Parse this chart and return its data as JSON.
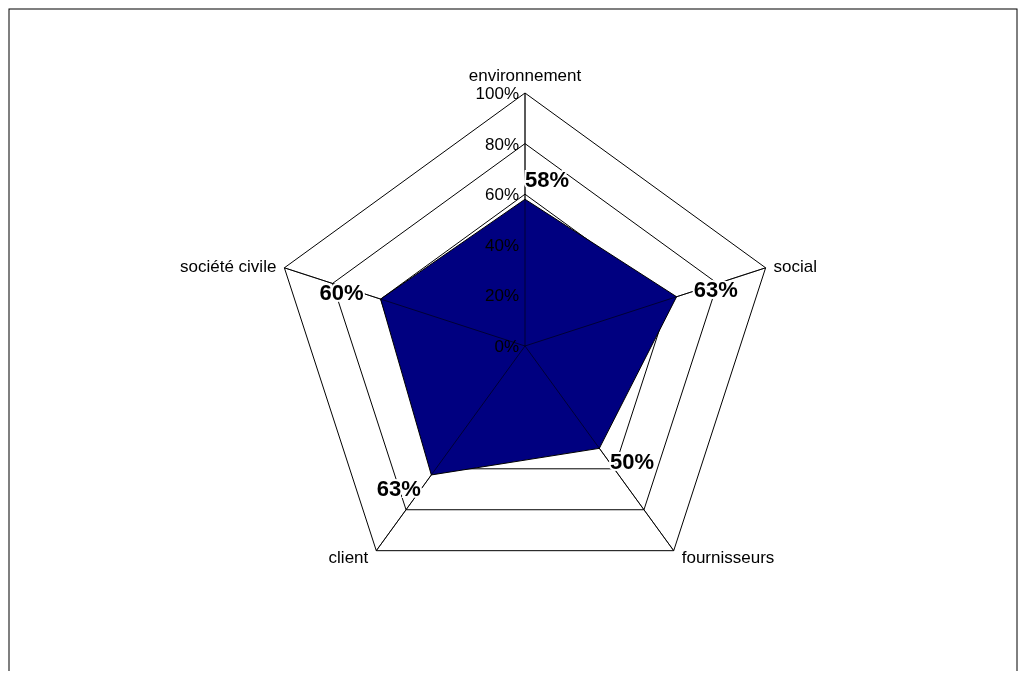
{
  "chart_data": {
    "type": "radar",
    "categories": [
      "environnement",
      "social",
      "fournisseurs",
      "client",
      "société civile"
    ],
    "series": [
      {
        "color": "#000080",
        "values": [
          58,
          63,
          50,
          63,
          60
        ]
      }
    ],
    "ylim": [
      0,
      100
    ],
    "yticks": [
      {
        "value": 0,
        "label": "0%"
      },
      {
        "value": 20,
        "label": "20%"
      },
      {
        "value": 40,
        "label": "40%"
      },
      {
        "value": 60,
        "label": "60%"
      },
      {
        "value": 80,
        "label": "80%"
      },
      {
        "value": 100,
        "label": "100%"
      }
    ],
    "value_labels": [
      "58%",
      "63%",
      "50%",
      "63%",
      "60%"
    ],
    "grid": true
  }
}
